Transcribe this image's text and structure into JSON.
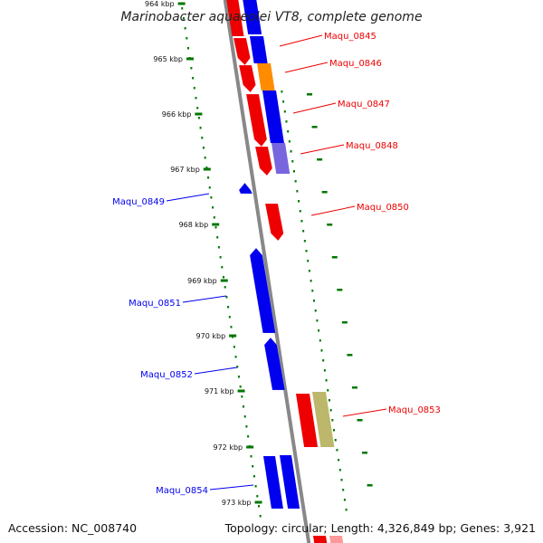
{
  "title": "Marinobacter aquaeolei VT8, complete genome",
  "accession_text": "Accession: NC_008740",
  "topology_text": "Topology: circular; Length: 4,326,849 bp; Genes: 3,921",
  "colors": {
    "forward_strand": "#ee0000",
    "reverse_strand": "#0000ee",
    "ruler": "#007700",
    "backbone": "#888888",
    "other_orange": "#ff8c00",
    "other_purple": "#7766dd",
    "other_olive": "#bdb76b"
  },
  "ruler_labels": [
    "964 kbp",
    "965 kbp",
    "966 kbp",
    "967 kbp",
    "968 kbp",
    "969 kbp",
    "970 kbp",
    "971 kbp",
    "972 kbp",
    "973 kbp"
  ],
  "genes": [
    {
      "name": "Maqu_0845",
      "strand": "forward"
    },
    {
      "name": "Maqu_0846",
      "strand": "forward"
    },
    {
      "name": "Maqu_0847",
      "strand": "forward"
    },
    {
      "name": "Maqu_0848",
      "strand": "forward"
    },
    {
      "name": "Maqu_0849",
      "strand": "reverse"
    },
    {
      "name": "Maqu_0850",
      "strand": "forward"
    },
    {
      "name": "Maqu_0851",
      "strand": "reverse"
    },
    {
      "name": "Maqu_0852",
      "strand": "reverse"
    },
    {
      "name": "Maqu_0853",
      "strand": "forward"
    },
    {
      "name": "Maqu_0854",
      "strand": "reverse"
    }
  ]
}
